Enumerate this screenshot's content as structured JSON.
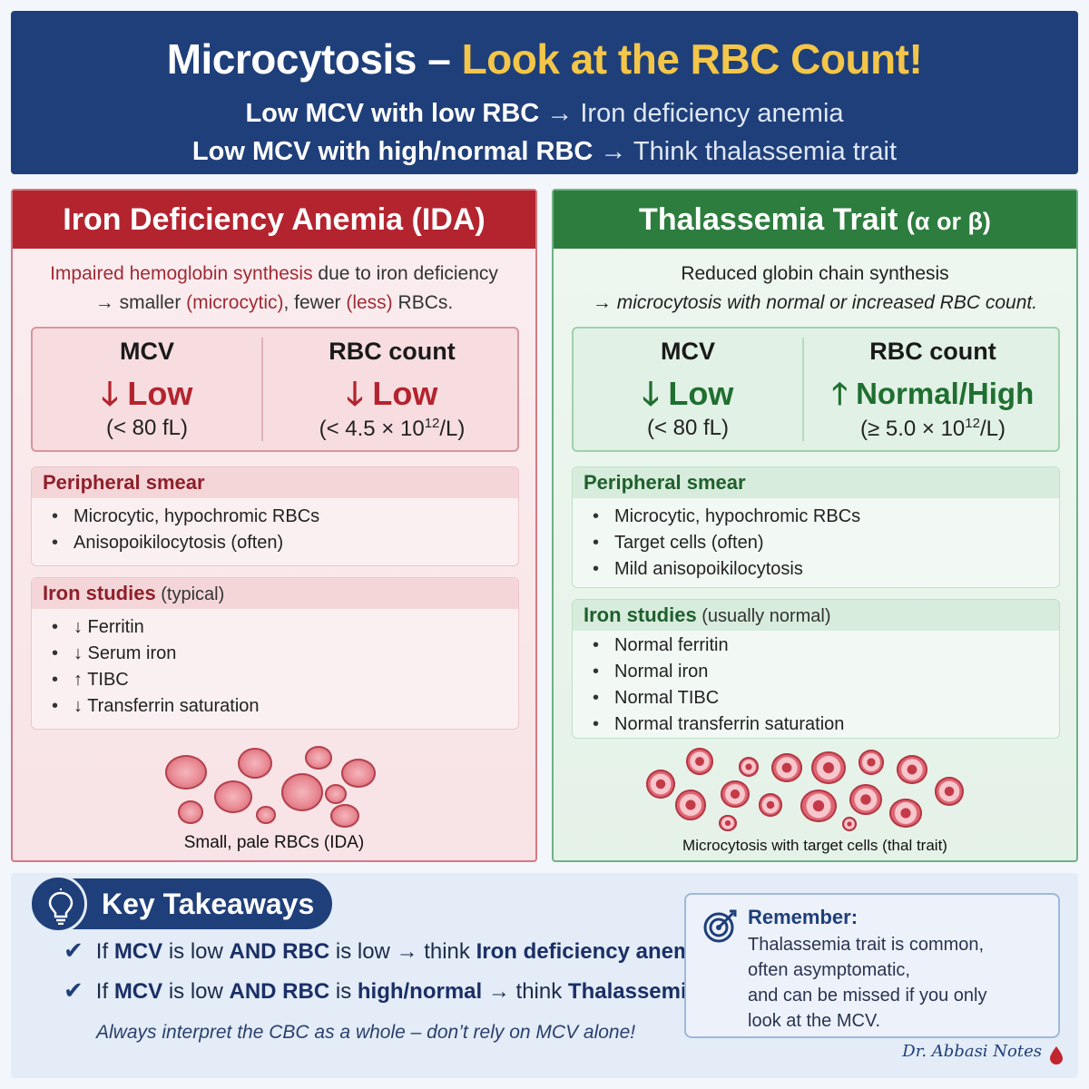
{
  "header": {
    "title_part1": "Microcytosis – ",
    "title_part2": "Look at the RBC Count!",
    "line1_bold": "Low MCV with low RBC",
    "line1_rest": " → Iron deficiency anemia",
    "line2_bold": "Low MCV with high/normal RBC",
    "line2_rest": " → Think thalassemia trait"
  },
  "ida": {
    "title": "Iron Deficiency Anemia (IDA)",
    "desc_red1": "Impaired hemoglobin synthesis",
    "desc_rest1": " due to iron deficiency",
    "desc_line2_a": "→  smaller ",
    "desc_line2_b": "(microcytic)",
    "desc_line2_c": ", fewer ",
    "desc_line2_d": "(less)",
    "desc_line2_e": " RBCs.",
    "mcv_name": "MCV",
    "mcv_val": "🡓 Low",
    "mcv_ref": "(< 80 fL)",
    "rbc_name": "RBC count",
    "rbc_val": "🡓 Low",
    "rbc_ref_a": "(< 4.5 × 10",
    "rbc_ref_sup": "12",
    "rbc_ref_b": "/L)",
    "smear_title": "Peripheral smear",
    "smear_items": [
      "Microcytic, hypochromic RBCs",
      "Anisopoikilocytosis (often)"
    ],
    "iron_title": "Iron studies",
    "iron_note": " (typical)",
    "iron_items": [
      "↓ Ferritin",
      "↓ Serum iron",
      "↑ TIBC",
      "↓ Transferrin saturation"
    ],
    "caption": "Small, pale RBCs (IDA)",
    "cell_color": "#e98b95"
  },
  "thal": {
    "title": "Thalassemia Trait ",
    "title_small": "(α or β)",
    "desc_line1": "Reduced globin chain synthesis",
    "desc_line2": "→  microcytosis with normal or increased RBC count.",
    "mcv_name": "MCV",
    "mcv_val": "🡓 Low",
    "mcv_ref": "(< 80 fL)",
    "rbc_name": "RBC count",
    "rbc_val": "🡑 Normal/High",
    "rbc_ref_a": "(≥ 5.0 × 10",
    "rbc_ref_sup": "12",
    "rbc_ref_b": "/L)",
    "smear_title": "Peripheral smear",
    "smear_items": [
      "Microcytic, hypochromic RBCs",
      "Target cells (often)",
      "Mild anisopoikilocytosis"
    ],
    "iron_title": "Iron studies",
    "iron_note": " (usually normal)",
    "iron_items": [
      "Normal ferritin",
      "Normal iron",
      "Normal TIBC",
      "Normal transferrin saturation"
    ],
    "caption": "Microcytosis with target cells (thal trait)",
    "cell_color": "#df6573"
  },
  "footer": {
    "title": "Key Takeaways",
    "t1": {
      "check": "✔",
      "a": "If ",
      "b": "MCV",
      "c": " is low ",
      "d": "AND RBC",
      "e": " is low → think ",
      "f": "Iron deficiency anemia",
      "g": "."
    },
    "t2": {
      "check": "✔",
      "a": "If ",
      "b": "MCV",
      "c": " is low ",
      "d": "AND RBC",
      "e": " is ",
      "f": "high/normal",
      "g": " → think ",
      "h": "Thalassemia trait",
      "i": "."
    },
    "always": "Always interpret the CBC as a whole – don’t rely on MCV alone!",
    "remember_title": "Remember:",
    "remember_lines": [
      "Thalassemia trait is common,",
      "often asymptomatic,",
      "and can be missed if you only",
      "look at the MCV."
    ],
    "signature": "Dr. Abbasi Notes",
    "accent": "#1f3f7a"
  }
}
